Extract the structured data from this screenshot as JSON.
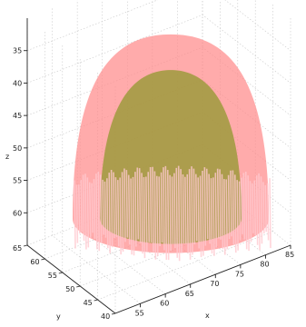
{
  "chart_data": {
    "type": "surface3d",
    "title": "",
    "xlabel": "x",
    "ylabel": "y",
    "zlabel": "z",
    "xlim": [
      50,
      85
    ],
    "ylim": [
      40,
      65
    ],
    "zlim": [
      30,
      65
    ],
    "zdir": "reverse",
    "grid": true,
    "x_ticks": [
      "55",
      "60",
      "65",
      "70",
      "75",
      "80",
      "85"
    ],
    "y_ticks": [
      "40",
      "45",
      "50",
      "55",
      "60",
      "65"
    ],
    "z_ticks": [
      "35",
      "40",
      "45",
      "50",
      "55",
      "60"
    ],
    "series": [
      {
        "shape": "paraboloid",
        "color": "#ff8a8a",
        "opacity": 0.72,
        "center": [
          67,
          52
        ],
        "z_apex": 32.5,
        "z_base": 62
      },
      {
        "shape": "paraboloid",
        "color": "#9e9a3c",
        "opacity": 0.85,
        "center": [
          67,
          52
        ],
        "z_apex": 38,
        "z_base": 62
      }
    ]
  }
}
